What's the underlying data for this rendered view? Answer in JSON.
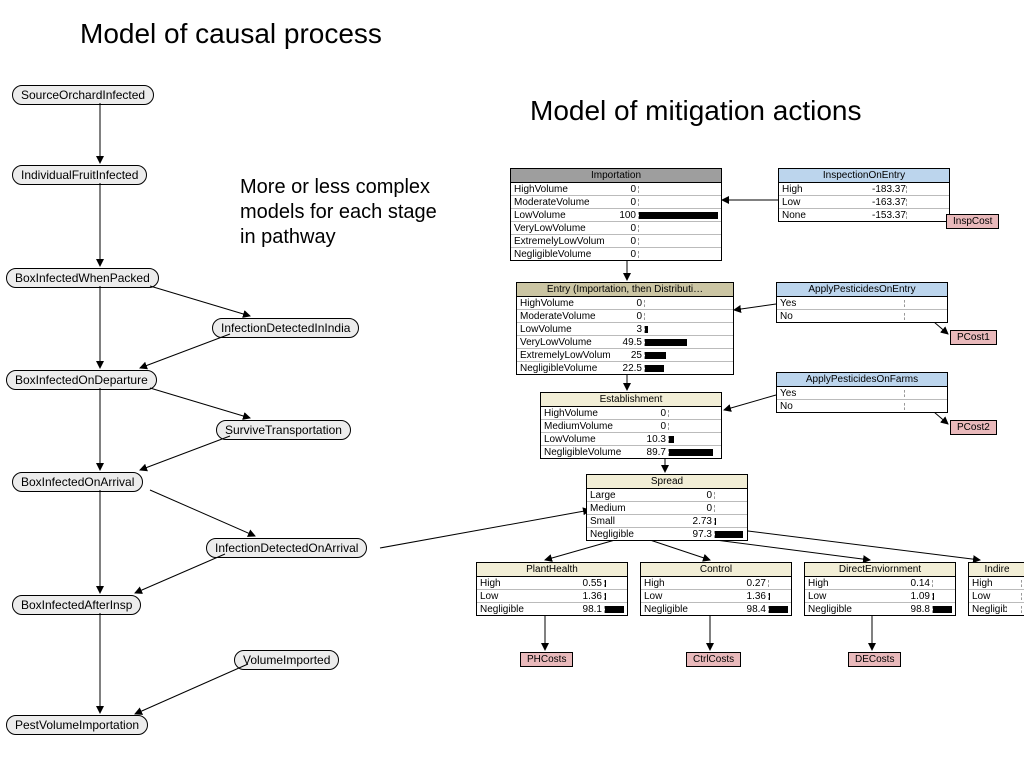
{
  "titles": {
    "causal": "Model of causal process",
    "mitigation": "Model of mitigation actions",
    "note": "More or less complex models for each stage in pathway"
  },
  "causal_nodes": {
    "n1": "SourceOrchardInfected",
    "n2": "IndividualFruitInfected",
    "n3": "BoxInfectedWhenPacked",
    "n4": "InfectionDetectedInIndia",
    "n5": "BoxInfectedOnDeparture",
    "n6": "SurviveTransportation",
    "n7": "BoxInfectedOnArrival",
    "n8": "InfectionDetectedOnArrival",
    "n9": "BoxInfectedAfterInsp",
    "n10": "VolumeImported",
    "n11": "PestVolumeImportation"
  },
  "colors": {
    "node_bg": "#ececec",
    "table_cream": "#f2eed6",
    "table_blue": "#bcd5ed",
    "table_gray": "#9e9e9e",
    "table_beige": "#cbc5a3",
    "hex_bg": "#e9b9bb",
    "bar_fill": "#000000",
    "line": "#000000"
  },
  "tables": {
    "importation": {
      "title": "Importation",
      "bg": "gray",
      "rows": [
        {
          "l": "HighVolume",
          "v": 0,
          "p": 0
        },
        {
          "l": "ModerateVolume",
          "v": 0,
          "p": 0
        },
        {
          "l": "LowVolume",
          "v": 100,
          "p": 100
        },
        {
          "l": "VeryLowVolume",
          "v": 0,
          "p": 0
        },
        {
          "l": "ExtremelyLowVolume",
          "v": 0,
          "p": 0
        },
        {
          "l": "NegligibleVolume",
          "v": 0,
          "p": 0
        }
      ]
    },
    "inspection": {
      "title": "InspectionOnEntry",
      "bg": "blue",
      "rows": [
        {
          "l": "High",
          "v": -183.37,
          "p": 0
        },
        {
          "l": "Low",
          "v": -163.37,
          "p": 0
        },
        {
          "l": "None",
          "v": -153.37,
          "p": 0
        }
      ]
    },
    "entry": {
      "title": "Entry (Importation, then Distributi…",
      "bg": "beige",
      "rows": [
        {
          "l": "HighVolume",
          "v": 0,
          "p": 0
        },
        {
          "l": "ModerateVolume",
          "v": 0,
          "p": 0
        },
        {
          "l": "LowVolume",
          "v": 3.0,
          "p": 3
        },
        {
          "l": "VeryLowVolume",
          "v": 49.5,
          "p": 49.5
        },
        {
          "l": "ExtremelyLowVolume",
          "v": 25.0,
          "p": 25
        },
        {
          "l": "NegligibleVolume",
          "v": 22.5,
          "p": 22.5
        }
      ]
    },
    "pestEntry": {
      "title": "ApplyPesticidesOnEntry",
      "bg": "blue",
      "rows": [
        {
          "l": "Yes",
          "v": "",
          "p": 0
        },
        {
          "l": "No",
          "v": "",
          "p": 0
        }
      ]
    },
    "establishment": {
      "title": "Establishment",
      "bg": "cream",
      "rows": [
        {
          "l": "HighVolume",
          "v": 0,
          "p": 0
        },
        {
          "l": "MediumVolume",
          "v": 0,
          "p": 0
        },
        {
          "l": "LowVolume",
          "v": 10.3,
          "p": 10.3
        },
        {
          "l": "NegligibleVolume",
          "v": 89.7,
          "p": 89.7
        }
      ]
    },
    "pestFarms": {
      "title": "ApplyPesticidesOnFarms",
      "bg": "blue",
      "rows": [
        {
          "l": "Yes",
          "v": "",
          "p": 0
        },
        {
          "l": "No",
          "v": "",
          "p": 0
        }
      ]
    },
    "spread": {
      "title": "Spread",
      "bg": "cream",
      "rows": [
        {
          "l": "Large",
          "v": 0,
          "p": 0
        },
        {
          "l": "Medium",
          "v": 0,
          "p": 0
        },
        {
          "l": "Small",
          "v": 2.73,
          "p": 2.73
        },
        {
          "l": "Negligible",
          "v": 97.3,
          "p": 97.3
        }
      ]
    },
    "plantHealth": {
      "title": "PlantHealth",
      "bg": "cream",
      "rows": [
        {
          "l": "High",
          "v": 0.55,
          "p": 0.55
        },
        {
          "l": "Low",
          "v": 1.36,
          "p": 1.36
        },
        {
          "l": "Negligible",
          "v": 98.1,
          "p": 98.1
        }
      ]
    },
    "control": {
      "title": "Control",
      "bg": "cream",
      "rows": [
        {
          "l": "High",
          "v": 0.27,
          "p": 0.27
        },
        {
          "l": "Low",
          "v": 1.36,
          "p": 1.36
        },
        {
          "l": "Negligible",
          "v": 98.4,
          "p": 98.4
        }
      ]
    },
    "directEnv": {
      "title": "DirectEnviornment",
      "bg": "cream",
      "rows": [
        {
          "l": "High",
          "v": 0.14,
          "p": 0.14
        },
        {
          "l": "Low",
          "v": 1.09,
          "p": 1.09
        },
        {
          "l": "Negligible",
          "v": 98.8,
          "p": 98.8
        }
      ]
    },
    "indirect": {
      "title": "Indire",
      "bg": "cream",
      "rows": [
        {
          "l": "High",
          "v": "",
          "p": 0
        },
        {
          "l": "Low",
          "v": "",
          "p": 0
        },
        {
          "l": "Negligibl",
          "v": "",
          "p": 0
        }
      ]
    }
  },
  "hexes": {
    "inspCost": "InspCost",
    "pcost1": "PCost1",
    "pcost2": "PCost2",
    "phcosts": "PHCosts",
    "ctrlcosts": "CtrlCosts",
    "decosts": "DECosts"
  }
}
